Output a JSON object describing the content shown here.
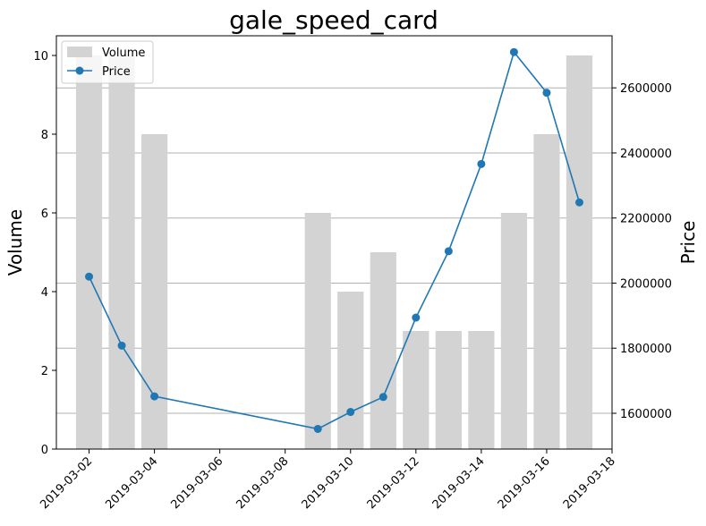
{
  "chart_data": {
    "type": "bar",
    "title": "gale_speed_card",
    "ylabel_left": "Volume",
    "ylabel_right": "Price",
    "xlabel": "",
    "x_tick_labels": [
      "2019-03-02",
      "2019-03-04",
      "2019-03-06",
      "2019-03-08",
      "2019-03-10",
      "2019-03-12",
      "2019-03-14",
      "2019-03-16",
      "2019-03-18"
    ],
    "x_range": [
      "2019-03-01",
      "2019-03-18"
    ],
    "left_ylim": [
      0,
      10.5
    ],
    "left_yticks": [
      0,
      2,
      4,
      6,
      8,
      10
    ],
    "right_ylim": [
      1490000,
      2760000
    ],
    "right_yticks": [
      1600000,
      1800000,
      2000000,
      2200000,
      2400000,
      2600000
    ],
    "grid": "horizontal on right axis",
    "legend_position": "upper-left",
    "series": [
      {
        "name": "Volume",
        "type": "bar",
        "color": "#d3d3d3",
        "axis": "left",
        "points": [
          {
            "x": "2019-03-02",
            "y": 10
          },
          {
            "x": "2019-03-03",
            "y": 10
          },
          {
            "x": "2019-03-04",
            "y": 8
          },
          {
            "x": "2019-03-09",
            "y": 6
          },
          {
            "x": "2019-03-10",
            "y": 4
          },
          {
            "x": "2019-03-11",
            "y": 5
          },
          {
            "x": "2019-03-12",
            "y": 3
          },
          {
            "x": "2019-03-13",
            "y": 3
          },
          {
            "x": "2019-03-14",
            "y": 3
          },
          {
            "x": "2019-03-15",
            "y": 6
          },
          {
            "x": "2019-03-16",
            "y": 8
          },
          {
            "x": "2019-03-17",
            "y": 10
          }
        ]
      },
      {
        "name": "Price",
        "type": "line",
        "color": "#1f77b4",
        "axis": "right",
        "points": [
          {
            "x": "2019-03-02",
            "y": 2020000
          },
          {
            "x": "2019-03-03",
            "y": 1808000
          },
          {
            "x": "2019-03-04",
            "y": 1652000
          },
          {
            "x": "2019-03-09",
            "y": 1552000
          },
          {
            "x": "2019-03-10",
            "y": 1604000
          },
          {
            "x": "2019-03-11",
            "y": 1650000
          },
          {
            "x": "2019-03-12",
            "y": 1894000
          },
          {
            "x": "2019-03-13",
            "y": 2098000
          },
          {
            "x": "2019-03-14",
            "y": 2366000
          },
          {
            "x": "2019-03-15",
            "y": 2710000
          },
          {
            "x": "2019-03-16",
            "y": 2585000
          },
          {
            "x": "2019-03-17",
            "y": 2248000
          }
        ]
      }
    ]
  }
}
